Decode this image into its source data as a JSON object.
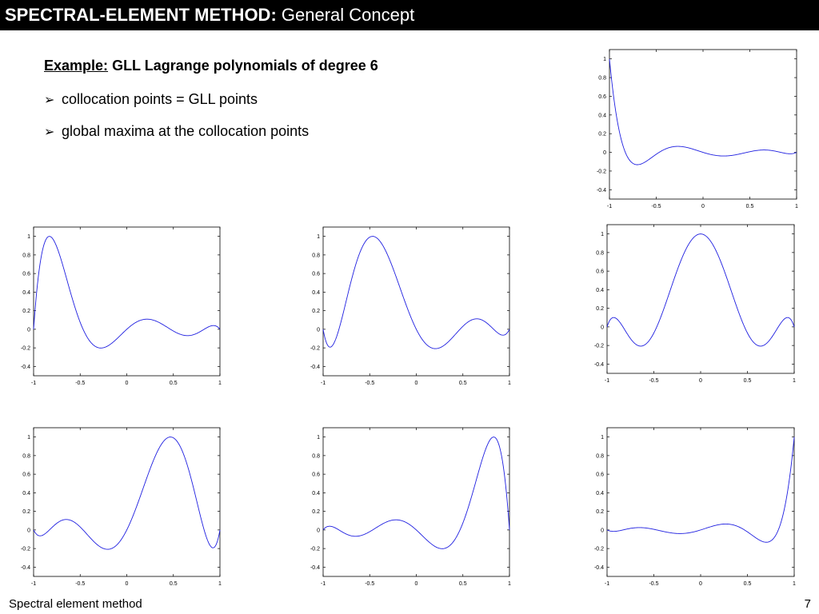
{
  "header": {
    "title_bold": "SPECTRAL-ELEMENT METHOD:",
    "title_rest": "General Concept"
  },
  "content": {
    "example_label": "Example:",
    "example_text": "GLL Lagrange polynomials of degree 6",
    "bullets": [
      "collocation points = GLL points",
      "global maxima at the collocation points"
    ],
    "bullet_glyph": "➢"
  },
  "footer": {
    "left": "Spectral element method",
    "page_number": "7"
  },
  "colors": {
    "title_bar": "#000000",
    "line": "#1f1fe0",
    "axes": "#000000"
  },
  "chart_data": [
    {
      "type": "line",
      "title": "",
      "xlabel": "",
      "ylabel": "",
      "node_index": 0,
      "xlim": [
        -1,
        1
      ],
      "ylim": [
        -0.5,
        1.1
      ],
      "xticks": [
        "-1",
        "-0.5",
        "0",
        "0.5",
        "1"
      ],
      "yticks": [
        "-0.4",
        "-0.2",
        "0",
        "0.2",
        "0.4",
        "0.6",
        "0.8",
        "1"
      ],
      "grid": false
    },
    {
      "type": "line",
      "title": "",
      "xlabel": "",
      "ylabel": "",
      "node_index": 1,
      "xlim": [
        -1,
        1
      ],
      "ylim": [
        -0.5,
        1.1
      ],
      "xticks": [
        "-1",
        "-0.5",
        "0",
        "0.5",
        "1"
      ],
      "yticks": [
        "-0.4",
        "-0.2",
        "0",
        "0.2",
        "0.4",
        "0.6",
        "0.8",
        "1"
      ],
      "grid": false
    },
    {
      "type": "line",
      "title": "",
      "xlabel": "",
      "ylabel": "",
      "node_index": 2,
      "xlim": [
        -1,
        1
      ],
      "ylim": [
        -0.5,
        1.1
      ],
      "xticks": [
        "-1",
        "-0.5",
        "0",
        "0.5",
        "1"
      ],
      "yticks": [
        "-0.4",
        "-0.2",
        "0",
        "0.2",
        "0.4",
        "0.6",
        "0.8",
        "1"
      ],
      "grid": false
    },
    {
      "type": "line",
      "title": "",
      "xlabel": "",
      "ylabel": "",
      "node_index": 3,
      "xlim": [
        -1,
        1
      ],
      "ylim": [
        -0.5,
        1.1
      ],
      "xticks": [
        "-1",
        "-0.5",
        "0",
        "0.5",
        "1"
      ],
      "yticks": [
        "-0.4",
        "-0.2",
        "0",
        "0.2",
        "0.4",
        "0.6",
        "0.8",
        "1"
      ],
      "grid": false
    },
    {
      "type": "line",
      "title": "",
      "xlabel": "",
      "ylabel": "",
      "node_index": 4,
      "xlim": [
        -1,
        1
      ],
      "ylim": [
        -0.5,
        1.1
      ],
      "xticks": [
        "-1",
        "-0.5",
        "0",
        "0.5",
        "1"
      ],
      "yticks": [
        "-0.4",
        "-0.2",
        "0",
        "0.2",
        "0.4",
        "0.6",
        "0.8",
        "1"
      ],
      "grid": false
    },
    {
      "type": "line",
      "title": "",
      "xlabel": "",
      "ylabel": "",
      "node_index": 5,
      "xlim": [
        -1,
        1
      ],
      "ylim": [
        -0.5,
        1.1
      ],
      "xticks": [
        "-1",
        "-0.5",
        "0",
        "0.5",
        "1"
      ],
      "yticks": [
        "-0.4",
        "-0.2",
        "0",
        "0.2",
        "0.4",
        "0.6",
        "0.8",
        "1"
      ],
      "grid": false
    },
    {
      "type": "line",
      "title": "",
      "xlabel": "",
      "ylabel": "",
      "node_index": 6,
      "xlim": [
        -1,
        1
      ],
      "ylim": [
        -0.5,
        1.1
      ],
      "xticks": [
        "-1",
        "-0.5",
        "0",
        "0.5",
        "1"
      ],
      "yticks": [
        "-0.4",
        "-0.2",
        "0",
        "0.2",
        "0.4",
        "0.6",
        "0.8",
        "1"
      ],
      "grid": false
    }
  ]
}
